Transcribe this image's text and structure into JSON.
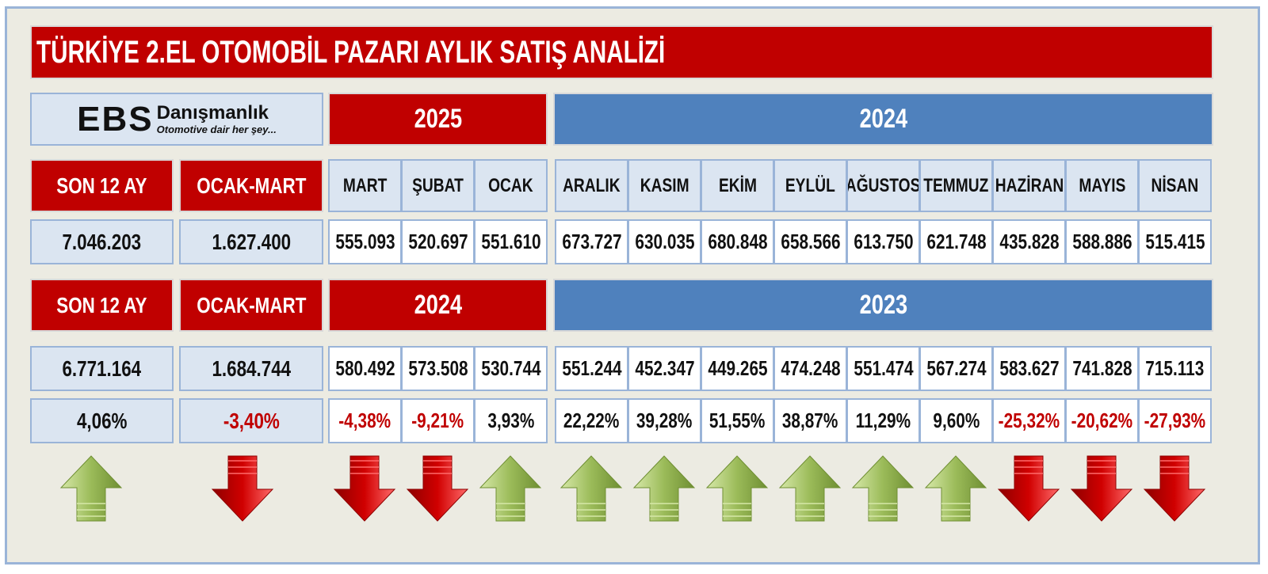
{
  "title": "TÜRKİYE 2.EL OTOMOBİL PAZARI AYLIK SATIŞ ANALİZİ",
  "logo": {
    "brand": "EBS",
    "name": "Danışmanlık",
    "tagline": "Otomotive dair her şey..."
  },
  "colors": {
    "red": "#c00000",
    "blue": "#4f81bd",
    "light": "#dbe5f1",
    "arrow_up": "#9bbb59",
    "arrow_down": "#d00000"
  },
  "labels": {
    "son12": "SON 12 AY",
    "ocak_mart": "OCAK-MART"
  },
  "years_top": {
    "left": "2025",
    "right": "2024"
  },
  "years_bottom": {
    "left": "2024",
    "right": "2023"
  },
  "months": [
    "MART",
    "ŞUBAT",
    "OCAK",
    "ARALIK",
    "KASIM",
    "EKİM",
    "EYLÜL",
    "AĞUSTOS",
    "TEMMUZ",
    "HAZİRAN",
    "MAYIS",
    "NİSAN"
  ],
  "current": {
    "son12": "7.046.203",
    "ocak_mart": "1.627.400",
    "monthly": [
      "555.093",
      "520.697",
      "551.610",
      "673.727",
      "630.035",
      "680.848",
      "658.566",
      "613.750",
      "621.748",
      "435.828",
      "588.886",
      "515.415"
    ]
  },
  "previous": {
    "son12": "6.771.164",
    "ocak_mart": "1.684.744",
    "monthly": [
      "580.492",
      "573.508",
      "530.744",
      "551.244",
      "452.347",
      "449.265",
      "474.248",
      "551.474",
      "567.274",
      "583.627",
      "741.828",
      "715.113"
    ]
  },
  "change": {
    "son12": "4,06%",
    "ocak_mart": "-3,40%",
    "monthly": [
      "-4,38%",
      "-9,21%",
      "3,93%",
      "22,22%",
      "39,28%",
      "51,55%",
      "38,87%",
      "11,29%",
      "9,60%",
      "-25,32%",
      "-20,62%",
      "-27,93%"
    ]
  },
  "trend": {
    "son12": "up-arrow-icon",
    "ocak_mart": "down-arrow-icon",
    "monthly": [
      "down-arrow-icon",
      "down-arrow-icon",
      "up-arrow-icon",
      "up-arrow-icon",
      "up-arrow-icon",
      "up-arrow-icon",
      "up-arrow-icon",
      "up-arrow-icon",
      "up-arrow-icon",
      "down-arrow-icon",
      "down-arrow-icon",
      "down-arrow-icon"
    ]
  }
}
